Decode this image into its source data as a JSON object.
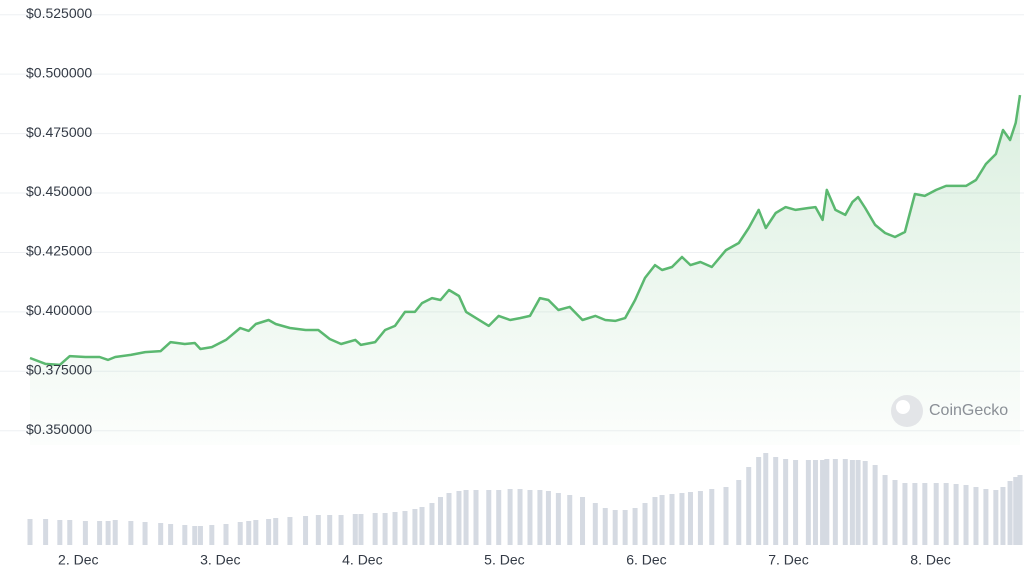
{
  "chart_data": {
    "type": "line",
    "series": [
      {
        "name": "Price",
        "color": "#5bb870",
        "values": [
          0.3806,
          0.3781,
          0.3777,
          0.3814,
          0.381,
          0.381,
          0.3798,
          0.381,
          0.3819,
          0.3831,
          0.3835,
          0.3873,
          0.3865,
          0.3869,
          0.3844,
          0.3852,
          0.3882,
          0.3932,
          0.392,
          0.3949,
          0.3966,
          0.3949,
          0.3932,
          0.3924,
          0.3924,
          0.3886,
          0.3865,
          0.3882,
          0.3861,
          0.3873,
          0.3924,
          0.3941,
          0.4,
          0.4,
          0.4037,
          0.4058,
          0.405,
          0.4092,
          0.4067,
          0.4,
          0.3974,
          0.3941,
          0.3983,
          0.3966,
          0.3974,
          0.3983,
          0.4058,
          0.405,
          0.4008,
          0.4021,
          0.3966,
          0.3983,
          0.3966,
          0.3962,
          0.3974,
          0.405,
          0.4143,
          0.4197,
          0.4176,
          0.4189,
          0.4231,
          0.4197,
          0.421,
          0.4189,
          0.426,
          0.429,
          0.4353,
          0.4429,
          0.4353,
          0.4416,
          0.4441,
          0.4429,
          0.4437,
          0.4441,
          0.4387,
          0.4513,
          0.4429,
          0.4408,
          0.4462,
          0.4483,
          0.4437,
          0.4366,
          0.4332,
          0.4315,
          0.4336,
          0.4496,
          0.4488,
          0.4513,
          0.453,
          0.453,
          0.453,
          0.4555,
          0.4622,
          0.4664,
          0.4765,
          0.4723,
          0.4795,
          0.4912
        ]
      },
      {
        "name": "Volume",
        "color": "#d5dae2",
        "axis": "y2",
        "values": [
          26,
          26,
          25,
          25,
          24,
          24,
          24,
          25,
          24,
          23,
          22,
          21,
          20,
          19,
          19,
          20,
          21,
          23,
          24,
          25,
          26,
          27,
          28,
          29,
          30,
          30,
          30,
          31,
          31,
          32,
          32,
          33,
          34,
          36,
          38,
          42,
          48,
          52,
          54,
          55,
          55,
          55,
          55,
          56,
          56,
          55,
          55,
          54,
          52,
          50,
          48,
          42,
          37,
          35,
          35,
          37,
          42,
          48,
          50,
          51,
          52,
          53,
          54,
          56,
          58,
          65,
          78,
          88,
          92,
          88,
          86,
          85,
          85,
          85,
          85,
          86,
          86,
          86,
          85,
          85,
          84,
          80,
          70,
          65,
          62,
          62,
          62,
          62,
          62,
          61,
          60,
          58,
          56,
          55,
          58,
          64,
          68,
          70
        ]
      }
    ],
    "x": [
      1.66,
      1.77,
      1.87,
      1.94,
      2.05,
      2.15,
      2.21,
      2.26,
      2.37,
      2.47,
      2.58,
      2.65,
      2.75,
      2.82,
      2.86,
      2.94,
      3.04,
      3.14,
      3.2,
      3.25,
      3.34,
      3.39,
      3.49,
      3.6,
      3.69,
      3.77,
      3.85,
      3.95,
      3.99,
      4.09,
      4.16,
      4.23,
      4.3,
      4.37,
      4.42,
      4.49,
      4.55,
      4.61,
      4.68,
      4.73,
      4.8,
      4.89,
      4.96,
      5.04,
      5.11,
      5.18,
      5.25,
      5.31,
      5.38,
      5.46,
      5.55,
      5.64,
      5.71,
      5.78,
      5.85,
      5.92,
      5.99,
      6.06,
      6.11,
      6.18,
      6.25,
      6.31,
      6.38,
      6.46,
      6.56,
      6.65,
      6.72,
      6.79,
      6.84,
      6.91,
      6.98,
      7.05,
      7.14,
      7.19,
      7.24,
      7.27,
      7.33,
      7.4,
      7.45,
      7.49,
      7.54,
      7.61,
      7.68,
      7.75,
      7.82,
      7.89,
      7.96,
      8.04,
      8.11,
      8.18,
      8.25,
      8.32,
      8.39,
      8.46,
      8.51,
      8.56,
      8.6,
      8.63
    ],
    "xlim": [
      1.66,
      8.63
    ],
    "xticks": [
      {
        "value": 2,
        "label": "2. Dec"
      },
      {
        "value": 3,
        "label": "3. Dec"
      },
      {
        "value": 4,
        "label": "4. Dec"
      },
      {
        "value": 5,
        "label": "5. Dec"
      },
      {
        "value": 6,
        "label": "6. Dec"
      },
      {
        "value": 7,
        "label": "7. Dec"
      },
      {
        "value": 8,
        "label": "8. Dec"
      }
    ],
    "ylim": [
      0.344,
      0.527
    ],
    "yticks": [
      {
        "value": 0.35,
        "label": "$0.350000"
      },
      {
        "value": 0.375,
        "label": "$0.375000"
      },
      {
        "value": 0.4,
        "label": "$0.400000"
      },
      {
        "value": 0.425,
        "label": "$0.425000"
      },
      {
        "value": 0.45,
        "label": "$0.450000"
      },
      {
        "value": 0.475,
        "label": "$0.475000"
      },
      {
        "value": 0.5,
        "label": "$0.500000"
      },
      {
        "value": 0.525,
        "label": "$0.525000"
      }
    ],
    "y2lim": [
      0,
      100
    ],
    "grid": true,
    "watermark": "CoinGecko"
  }
}
